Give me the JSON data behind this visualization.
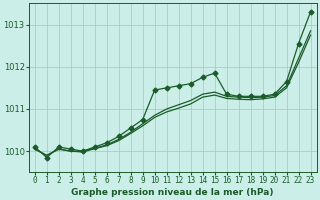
{
  "title": "Graphe pression niveau de la mer (hPa)",
  "background_color": "#cceee8",
  "plot_bg_color": "#cceee8",
  "grid_color": "#99ccbb",
  "line_color": "#1a5c2a",
  "ylim": [
    1009.5,
    1013.5
  ],
  "yticks": [
    1010,
    1011,
    1012,
    1013
  ],
  "xlim": [
    -0.5,
    23.5
  ],
  "series": [
    {
      "data": [
        1010.1,
        1009.85,
        1010.1,
        1010.05,
        1010.0,
        1010.1,
        1010.2,
        1010.35,
        1010.55,
        1010.75,
        1011.45,
        1011.5,
        1011.55,
        1011.6,
        1011.75,
        1011.85,
        1011.35,
        1011.3,
        1011.3,
        1011.3,
        1011.35,
        1011.65,
        1012.55,
        1013.3
      ],
      "marker": true,
      "lw": 0.9,
      "ms": 2.5
    },
    {
      "data": [
        1010.05,
        1009.9,
        1010.05,
        1010.0,
        1010.0,
        1010.07,
        1010.15,
        1010.28,
        1010.45,
        1010.65,
        1010.85,
        1011.0,
        1011.1,
        1011.2,
        1011.35,
        1011.4,
        1011.3,
        1011.28,
        1011.27,
        1011.28,
        1011.32,
        1011.55,
        1012.2,
        1012.85
      ],
      "marker": false,
      "lw": 0.9,
      "ms": 0
    },
    {
      "data": [
        1010.05,
        1009.9,
        1010.05,
        1010.0,
        1009.98,
        1010.06,
        1010.13,
        1010.25,
        1010.42,
        1010.6,
        1010.8,
        1010.93,
        1011.02,
        1011.12,
        1011.28,
        1011.33,
        1011.25,
        1011.23,
        1011.22,
        1011.24,
        1011.28,
        1011.5,
        1012.1,
        1012.75
      ],
      "marker": false,
      "lw": 0.9,
      "ms": 0
    }
  ],
  "xlabel_fontsize": 5.5,
  "ylabel_fontsize": 6,
  "title_fontsize": 6.5
}
